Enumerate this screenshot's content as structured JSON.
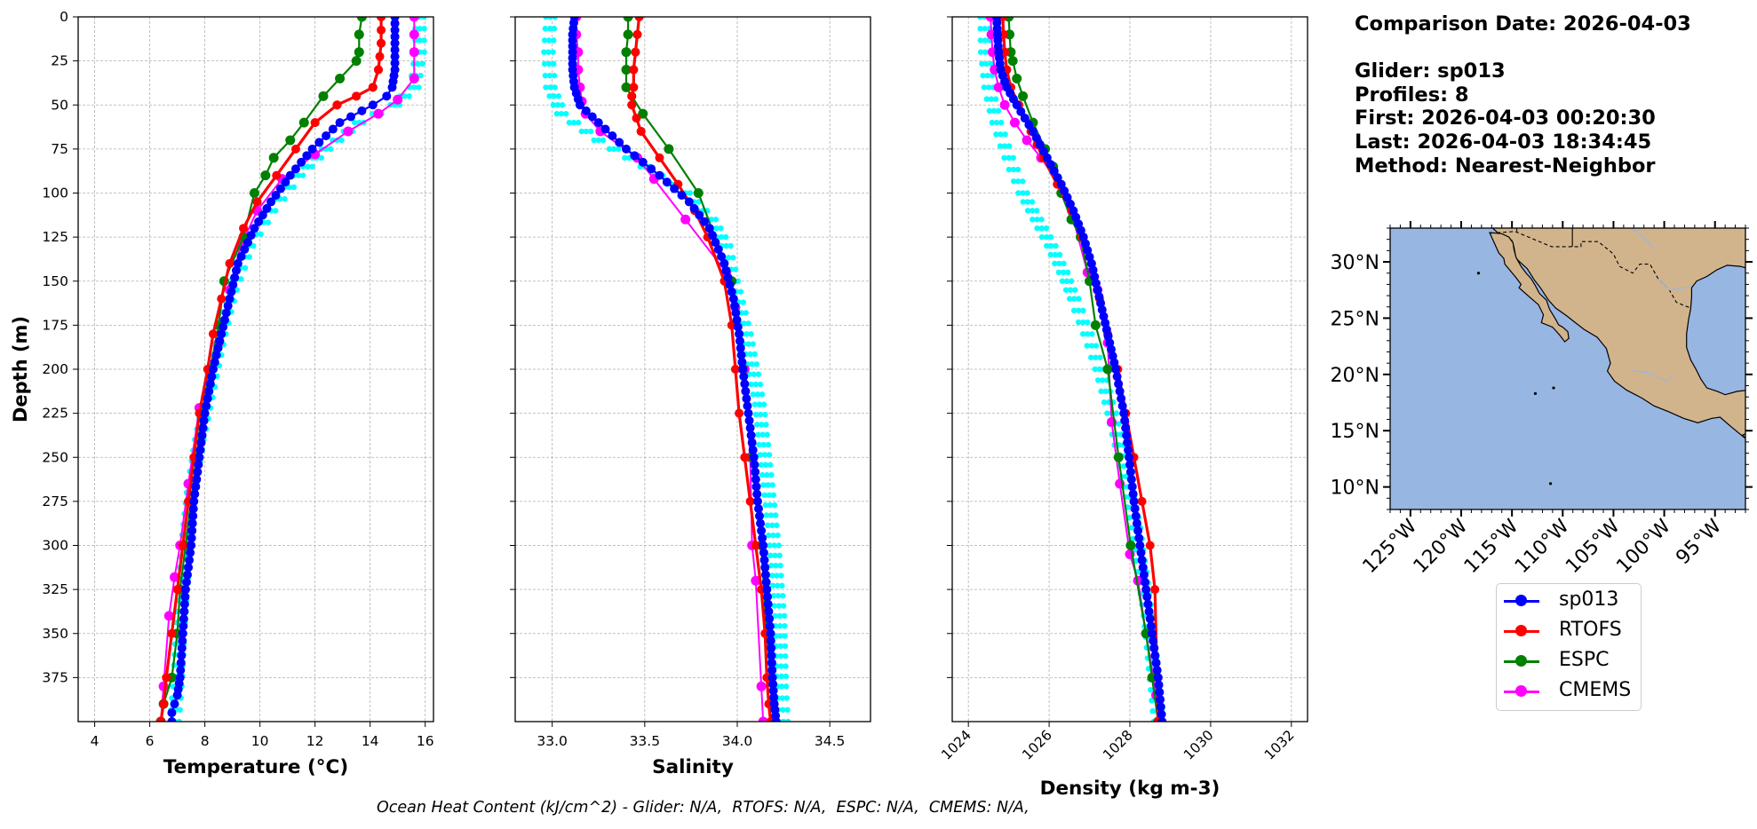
{
  "panels": [
    {
      "id": "temperature",
      "xlabel": "Temperature (°C)",
      "xlim": [
        3.4,
        16.3
      ],
      "xticks": [
        4,
        6,
        8,
        10,
        12,
        14,
        16
      ],
      "show_ylabel": true
    },
    {
      "id": "salinity",
      "xlabel": "Salinity",
      "xlim": [
        32.8,
        34.72
      ],
      "xticks": [
        33.0,
        33.5,
        34.0,
        34.5
      ],
      "show_ylabel": false
    },
    {
      "id": "density",
      "xlabel": "Density (kg m-3)",
      "xlim": [
        1023.6,
        1032.4
      ],
      "xticks": [
        1024,
        1026,
        1028,
        1030,
        1032
      ],
      "rotate_ticks": true,
      "show_ylabel": false
    }
  ],
  "shared_y": {
    "label": "Depth (m)",
    "ticks": [
      0,
      25,
      50,
      75,
      100,
      125,
      150,
      175,
      200,
      225,
      250,
      275,
      300,
      325,
      350,
      375
    ],
    "lim": [
      400,
      0
    ],
    "inverted": true
  },
  "chart_data": [
    {
      "type": "line",
      "title": "",
      "xlabel": "Temperature (°C)",
      "ylabel": "Depth (m)",
      "xlim": [
        3.4,
        16.3
      ],
      "ylim": [
        400,
        0
      ],
      "grid": true,
      "series": [
        {
          "name": "sp013",
          "color": "#0000ff",
          "x": [
            14.9,
            14.9,
            14.9,
            14.8,
            14.6,
            14.1,
            12.9,
            11.9,
            11.1,
            10.4,
            9.8,
            9.2,
            8.9,
            8.6,
            8.3,
            8.0,
            7.8,
            7.6,
            7.5,
            7.3,
            7.2,
            7.1,
            7.0,
            6.9,
            6.8,
            6.8
          ],
          "y": [
            0,
            15,
            30,
            40,
            45,
            50,
            60,
            75,
            90,
            105,
            120,
            140,
            160,
            180,
            200,
            225,
            250,
            275,
            300,
            325,
            350,
            375,
            385,
            390,
            395,
            400
          ]
        },
        {
          "name": "RTOFS",
          "color": "#ff0000",
          "x": [
            14.4,
            14.4,
            14.3,
            14.1,
            13.5,
            12.8,
            12.0,
            11.3,
            10.6,
            9.9,
            9.4,
            8.9,
            8.6,
            8.3,
            8.1,
            7.8,
            7.6,
            7.4,
            7.2,
            7.0,
            6.8,
            6.6,
            6.5,
            6.4
          ],
          "y": [
            0,
            15,
            30,
            40,
            45,
            50,
            60,
            75,
            90,
            105,
            120,
            140,
            160,
            180,
            200,
            225,
            250,
            275,
            300,
            325,
            350,
            375,
            390,
            400
          ]
        },
        {
          "name": "ESPC",
          "color": "#008000",
          "x": [
            13.7,
            13.6,
            13.6,
            13.5,
            12.9,
            12.3,
            11.6,
            11.1,
            10.5,
            10.2,
            9.8,
            9.4,
            8.7,
            8.5,
            8.2,
            7.9,
            7.7,
            7.3,
            7.1,
            7.0,
            6.8,
            6.5,
            6.4
          ],
          "y": [
            0,
            10,
            20,
            25,
            35,
            45,
            60,
            70,
            80,
            90,
            100,
            125,
            150,
            175,
            200,
            225,
            250,
            300,
            325,
            350,
            375,
            390,
            400
          ]
        },
        {
          "name": "CMEMS",
          "color": "#ff00ff",
          "x": [
            15.6,
            15.6,
            15.6,
            15.6,
            15.0,
            14.3,
            13.2,
            12.0,
            10.8,
            9.9,
            9.3,
            8.9,
            8.5,
            8.2,
            7.8,
            7.4,
            7.1,
            6.9,
            6.7,
            6.5,
            6.4
          ],
          "y": [
            0,
            10,
            20,
            35,
            47,
            55,
            65,
            78,
            92,
            110,
            130,
            155,
            185,
            205,
            222,
            265,
            300,
            318,
            340,
            380,
            400
          ]
        },
        {
          "name": "sp013 profiles",
          "color": "#00ffff",
          "x": [
            15.8,
            15.8,
            15.6,
            14.9,
            13.6,
            12.4,
            11.4,
            10.4,
            9.6,
            9.0,
            8.6,
            8.2,
            7.8,
            7.5,
            7.3,
            7.2,
            7.1,
            7.0,
            6.9
          ],
          "y": [
            0,
            20,
            40,
            50,
            60,
            75,
            90,
            110,
            130,
            155,
            180,
            210,
            240,
            270,
            300,
            325,
            350,
            380,
            400
          ]
        }
      ]
    },
    {
      "type": "line",
      "title": "",
      "xlabel": "Salinity",
      "ylabel": "",
      "xlim": [
        32.8,
        34.72
      ],
      "ylim": [
        400,
        0
      ],
      "grid": true,
      "series": [
        {
          "name": "sp013",
          "color": "#0000ff",
          "x": [
            33.12,
            33.11,
            33.11,
            33.11,
            33.12,
            33.15,
            33.25,
            33.4,
            33.58,
            33.74,
            33.85,
            33.93,
            33.98,
            34.01,
            34.03,
            34.06,
            34.09,
            34.11,
            34.14,
            34.16,
            34.18,
            34.19,
            34.2,
            34.21
          ],
          "y": [
            0,
            10,
            20,
            30,
            40,
            50,
            60,
            75,
            90,
            105,
            120,
            140,
            160,
            180,
            200,
            225,
            250,
            275,
            300,
            325,
            350,
            375,
            390,
            400
          ]
        },
        {
          "name": "RTOFS",
          "color": "#ff0000",
          "x": [
            33.47,
            33.46,
            33.45,
            33.44,
            33.44,
            33.43,
            33.43,
            33.48,
            33.58,
            33.68,
            33.77,
            33.84,
            33.93,
            33.97,
            33.99,
            34.01,
            34.04,
            34.07,
            34.1,
            34.13,
            34.15,
            34.16,
            34.17,
            34.18
          ],
          "y": [
            0,
            10,
            20,
            30,
            40,
            45,
            50,
            65,
            80,
            95,
            110,
            125,
            150,
            175,
            200,
            225,
            250,
            275,
            300,
            325,
            350,
            375,
            390,
            400
          ]
        },
        {
          "name": "ESPC",
          "color": "#008000",
          "x": [
            33.41,
            33.41,
            33.4,
            33.4,
            33.4,
            33.49,
            33.63,
            33.79,
            33.97,
            34.03,
            34.08,
            34.13,
            34.16,
            34.18,
            34.19,
            34.2
          ],
          "y": [
            0,
            10,
            20,
            30,
            40,
            55,
            75,
            100,
            150,
            200,
            250,
            300,
            350,
            375,
            390,
            400
          ]
        },
        {
          "name": "CMEMS",
          "color": "#ff00ff",
          "x": [
            33.13,
            33.13,
            33.14,
            33.14,
            33.15,
            33.16,
            33.18,
            33.26,
            33.46,
            33.55,
            33.72,
            33.94,
            33.99,
            34.04,
            34.07,
            34.08,
            34.1,
            34.13,
            34.14
          ],
          "y": [
            0,
            10,
            20,
            30,
            40,
            48,
            55,
            65,
            80,
            92,
            115,
            145,
            165,
            200,
            250,
            300,
            320,
            380,
            400
          ]
        },
        {
          "name": "sp013 profiles",
          "color": "#00ffff",
          "x": [
            32.99,
            32.98,
            32.99,
            33.05,
            33.25,
            33.5,
            33.72,
            33.86,
            33.94,
            33.98,
            34.05,
            34.12,
            34.16,
            34.2,
            34.23,
            34.24,
            34.25
          ],
          "y": [
            0,
            20,
            40,
            55,
            70,
            85,
            100,
            115,
            130,
            150,
            180,
            220,
            260,
            300,
            340,
            380,
            400
          ]
        }
      ]
    },
    {
      "type": "line",
      "title": "",
      "xlabel": "Density (kg m-3)",
      "ylabel": "",
      "xlim": [
        1023.6,
        1032.4
      ],
      "ylim": [
        400,
        0
      ],
      "grid": true,
      "series": [
        {
          "name": "sp013",
          "color": "#0000ff",
          "x": [
            1024.7,
            1024.72,
            1024.75,
            1024.8,
            1024.95,
            1025.2,
            1025.6,
            1025.95,
            1026.3,
            1026.6,
            1026.85,
            1027.05,
            1027.2,
            1027.35,
            1027.5,
            1027.65,
            1027.85,
            1027.98,
            1028.1,
            1028.25,
            1028.4,
            1028.55,
            1028.7,
            1028.8
          ],
          "y": [
            0,
            10,
            20,
            30,
            40,
            50,
            65,
            80,
            95,
            110,
            125,
            140,
            155,
            170,
            185,
            200,
            225,
            250,
            275,
            300,
            325,
            350,
            375,
            400
          ]
        },
        {
          "name": "RTOFS",
          "color": "#ff0000",
          "x": [
            1024.85,
            1024.87,
            1024.9,
            1024.95,
            1025.05,
            1025.25,
            1025.55,
            1025.85,
            1026.2,
            1026.55,
            1026.82,
            1027.05,
            1027.25,
            1027.45,
            1027.7,
            1027.9,
            1028.1,
            1028.3,
            1028.5,
            1028.62,
            1028.7
          ],
          "y": [
            0,
            10,
            20,
            30,
            40,
            50,
            65,
            80,
            95,
            110,
            125,
            140,
            160,
            180,
            200,
            225,
            250,
            275,
            300,
            325,
            400
          ]
        },
        {
          "name": "ESPC",
          "color": "#008000",
          "x": [
            1025.0,
            1025.02,
            1025.05,
            1025.1,
            1025.2,
            1025.35,
            1025.6,
            1025.9,
            1026.1,
            1026.3,
            1026.55,
            1026.78,
            1027.0,
            1027.15,
            1027.45,
            1027.72,
            1028.02,
            1028.4,
            1028.55,
            1028.7
          ],
          "y": [
            0,
            10,
            20,
            25,
            35,
            45,
            60,
            75,
            85,
            100,
            115,
            125,
            150,
            175,
            200,
            250,
            300,
            350,
            375,
            400
          ]
        },
        {
          "name": "CMEMS",
          "color": "#ff00ff",
          "x": [
            1024.55,
            1024.57,
            1024.6,
            1024.65,
            1024.75,
            1024.9,
            1025.15,
            1025.45,
            1025.8,
            1026.25,
            1026.6,
            1026.95,
            1027.2,
            1027.45,
            1027.55,
            1027.75,
            1028.0,
            1028.2,
            1028.4,
            1028.65,
            1028.7
          ],
          "y": [
            0,
            10,
            20,
            30,
            40,
            50,
            60,
            70,
            80,
            95,
            115,
            145,
            155,
            185,
            230,
            265,
            305,
            320,
            350,
            385,
            400
          ]
        },
        {
          "name": "sp013 profiles",
          "color": "#00ffff",
          "x": [
            1024.4,
            1024.42,
            1024.5,
            1024.7,
            1025.0,
            1025.35,
            1025.7,
            1026.05,
            1026.35,
            1026.62,
            1026.95,
            1027.25,
            1027.55,
            1027.85,
            1028.15,
            1028.45,
            1028.7
          ],
          "y": [
            0,
            20,
            40,
            60,
            80,
            100,
            115,
            130,
            145,
            160,
            180,
            200,
            225,
            255,
            290,
            340,
            400
          ]
        }
      ]
    }
  ],
  "info": {
    "comparison_date": "Comparison Date: 2026-04-03",
    "glider": "Glider: sp013",
    "profiles": "Profiles: 8",
    "first": "First: 2026-04-03 00:20:30",
    "last": "Last: 2026-04-03 18:34:45",
    "method": "Method: Nearest-Neighbor"
  },
  "map": {
    "lat_ticks": [
      "30°N",
      "25°N",
      "20°N",
      "15°N",
      "10°N"
    ],
    "lon_ticks": [
      "125°W",
      "120°W",
      "115°W",
      "110°W",
      "105°W",
      "100°W",
      "95°W"
    ],
    "colors": {
      "ocean": "#98b6e2",
      "land": "#d2b48c"
    }
  },
  "legend": {
    "items": [
      {
        "label": "sp013",
        "color": "#0000ff"
      },
      {
        "label": "RTOFS",
        "color": "#ff0000"
      },
      {
        "label": "ESPC",
        "color": "#008000"
      },
      {
        "label": "CMEMS",
        "color": "#ff00ff"
      }
    ]
  },
  "footer": "Ocean Heat Content (kJ/cm^2) - Glider: N/A,  RTOFS: N/A,  ESPC: N/A,  CMEMS: N/A,"
}
